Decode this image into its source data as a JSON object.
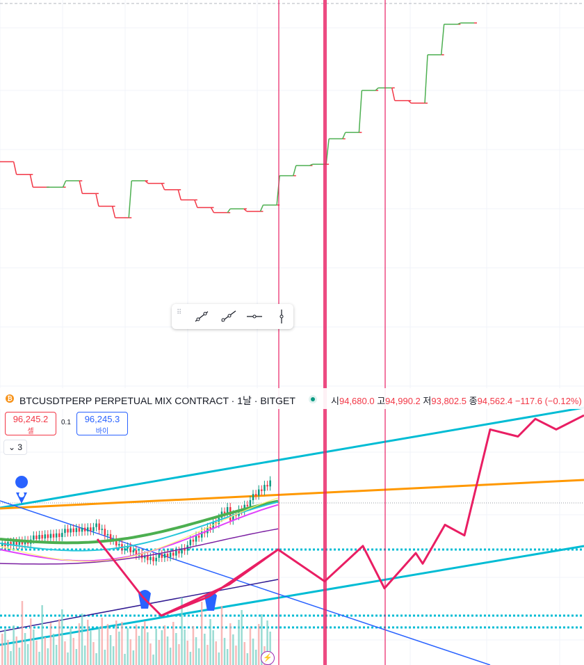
{
  "symbol": {
    "title": "BTCUSDTPERP PERPETUAL MIX CONTRACT · 1날 · BITGET",
    "coin_icon": "bitcoin-icon",
    "ohlc": {
      "open_label": "시",
      "open": "94,680.0",
      "high_label": "고",
      "high": "94,990.2",
      "low_label": "저",
      "low": "93,802.5",
      "close_label": "종",
      "close": "94,562.4",
      "change": "−117.6 (−0.12%)"
    }
  },
  "trade": {
    "sell_price": "96,245.2",
    "sell_label": "셀",
    "spread": "0.1",
    "buy_price": "96,245.3",
    "buy_label": "바이"
  },
  "collapse_label": "3",
  "drawing_toolbar": {
    "tools": [
      "trend-line-icon",
      "ray-icon",
      "horizontal-ray-icon",
      "vertical-line-icon"
    ]
  },
  "colors": {
    "up": "#089981",
    "down": "#f23645",
    "step_up": "#4caf50",
    "step_down": "#f23645",
    "channel": "#00bcd4",
    "orange_line": "#ff9800",
    "blue_line": "#2962ff",
    "projection": "#e91e63",
    "vertical_line": "#e91e63"
  },
  "chart_data": [
    {
      "type": "line",
      "description_source": "upper step indicator pane",
      "x": [
        0,
        1,
        2,
        3,
        4,
        5,
        6,
        7,
        8,
        9,
        10,
        11,
        12,
        13,
        14,
        15,
        16,
        17,
        18,
        19,
        20,
        21,
        22,
        23,
        24,
        25,
        26,
        27,
        28
      ],
      "series": [
        {
          "values": [
            8,
            7,
            6,
            6,
            6.5,
            5.5,
            4.5,
            3.6,
            6.5,
            6.3,
            5.8,
            5.0,
            4.4,
            4.0,
            4.3,
            4.1,
            4.6,
            6.9,
            7.7,
            7.8,
            9.8,
            10.3,
            13.6,
            13.8,
            12.8,
            12.6,
            16.4,
            18.8,
            18.9
          ]
        }
      ]
    },
    {
      "type": "line",
      "description_source": "main price pane projection path",
      "x": [
        0,
        1,
        2,
        3,
        4,
        5,
        6,
        7,
        8,
        9,
        10,
        11,
        12,
        13,
        14,
        15,
        16,
        17,
        18
      ],
      "series": [
        {
          "values": [
            94800,
            93900,
            94200,
            93700,
            94900,
            94900,
            94200,
            95400,
            94200,
            95500,
            95600,
            97000,
            96300,
            98400,
            98200,
            98500,
            98300,
            98600,
            98700
          ]
        }
      ]
    }
  ]
}
